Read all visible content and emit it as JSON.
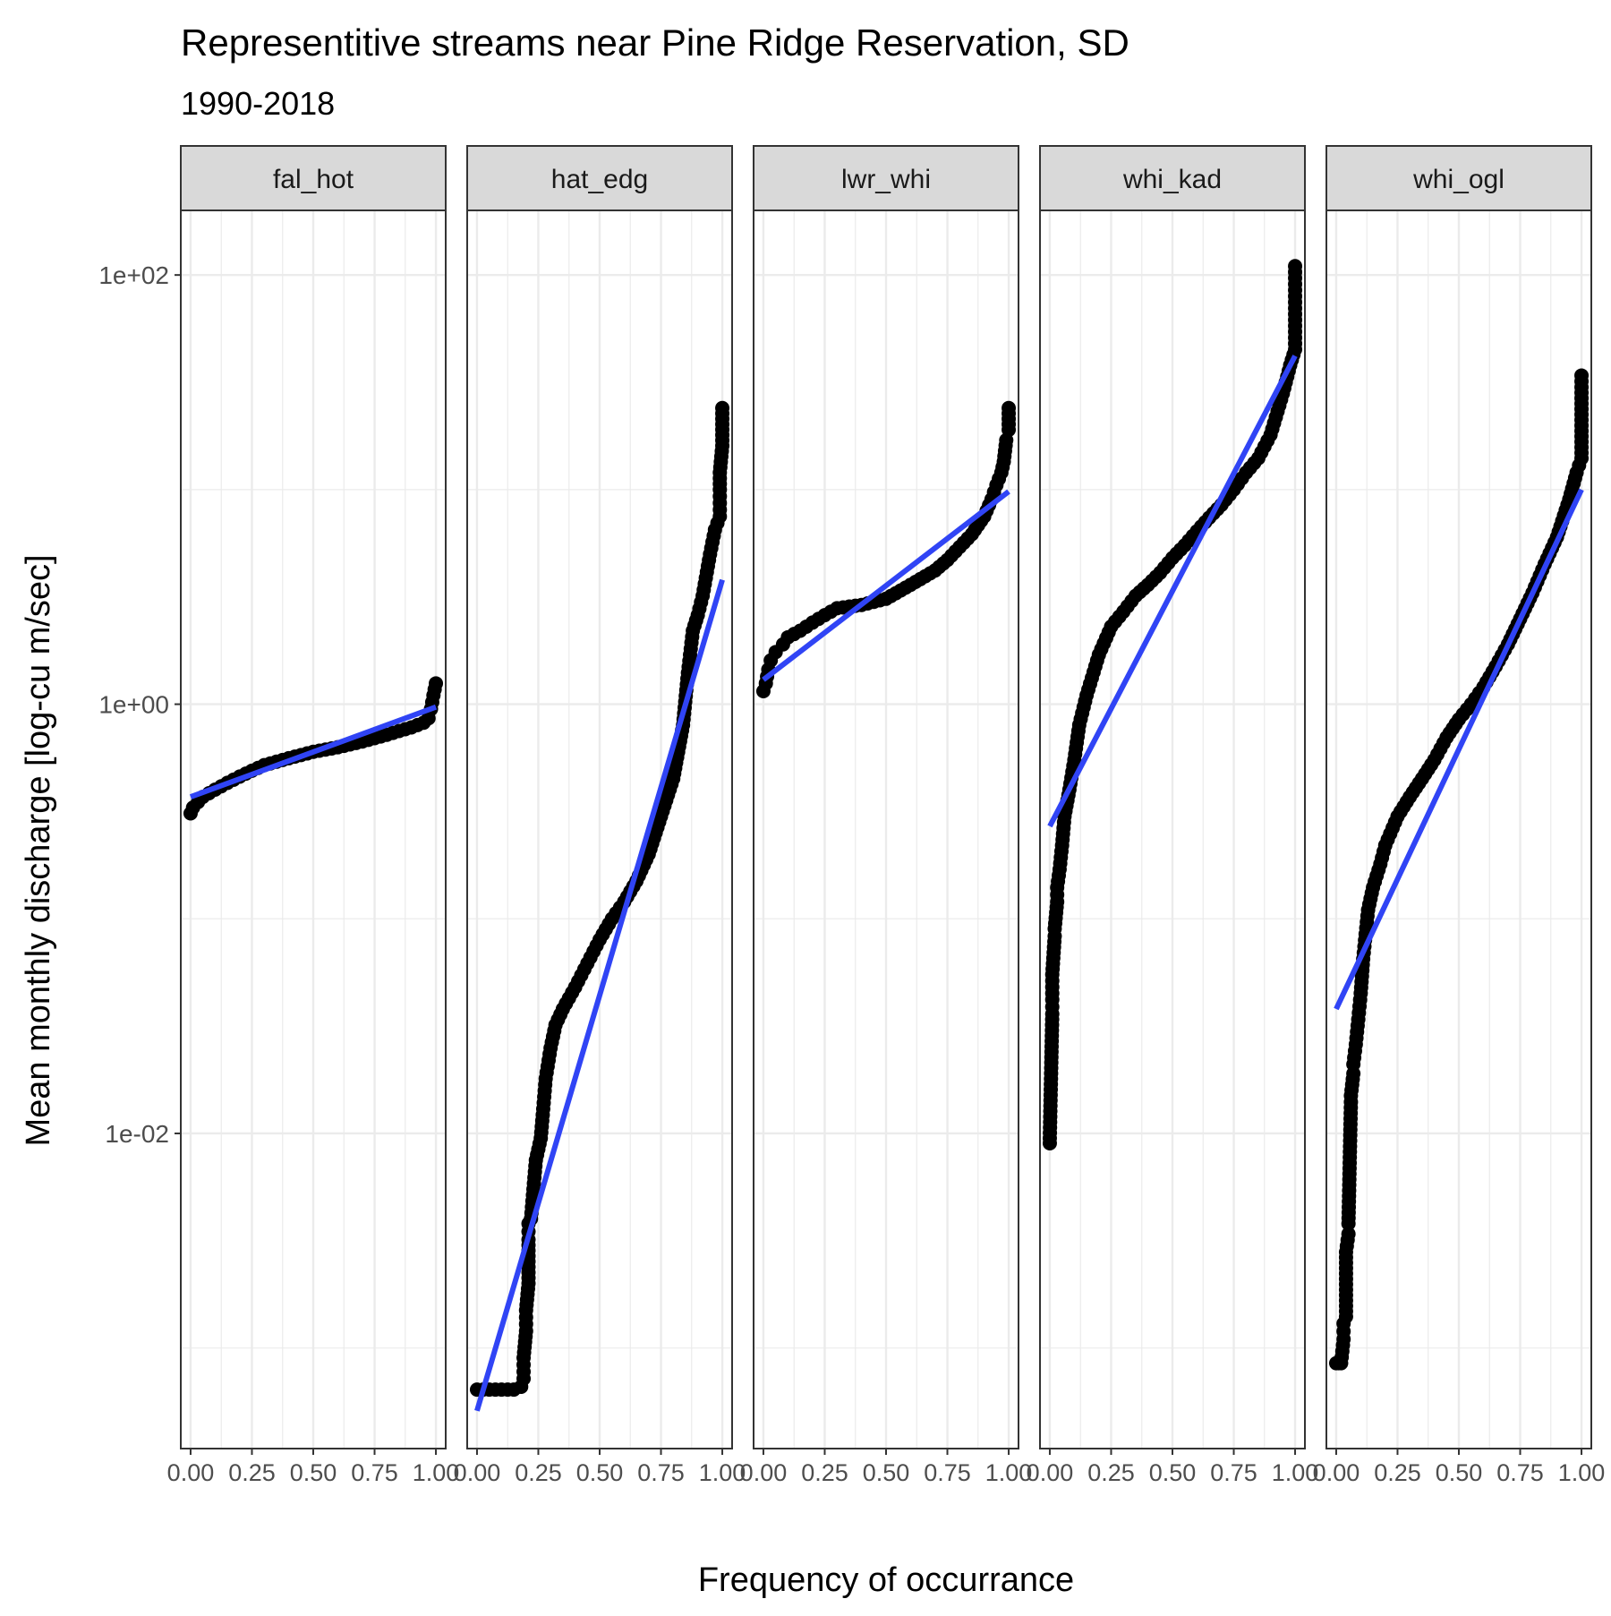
{
  "chart_data": {
    "type": "scatter",
    "title": "Representitive streams near Pine Ridge Reservation, SD",
    "subtitle": "1990-2018",
    "xlabel": "Frequency of occurrance",
    "ylabel": "Mean monthly discharge [log-cu m/sec]",
    "y_scale": "log10",
    "ylim": [
      0.00034,
      200
    ],
    "xlim": [
      -0.04,
      1.04
    ],
    "x_ticks": [
      0.0,
      0.25,
      0.5,
      0.75,
      1.0
    ],
    "x_tick_labels": [
      "0.00",
      "0.25",
      "0.50",
      "0.75",
      "1.00"
    ],
    "y_ticks": [
      0.01,
      1,
      100
    ],
    "y_tick_labels": [
      "1e-02",
      "1e+00",
      "1e+02"
    ],
    "grid": true,
    "point_color": "#000000",
    "fit_line_color": "#3044F5",
    "strip_fill": "#D9D9D9",
    "panels": [
      {
        "label": "fal_hot",
        "points": [
          [
            0.0,
            0.31
          ],
          [
            0.01,
            0.33
          ],
          [
            0.03,
            0.35
          ],
          [
            0.05,
            0.37
          ],
          [
            0.1,
            0.4
          ],
          [
            0.15,
            0.43
          ],
          [
            0.2,
            0.46
          ],
          [
            0.25,
            0.49
          ],
          [
            0.3,
            0.52
          ],
          [
            0.4,
            0.56
          ],
          [
            0.5,
            0.6
          ],
          [
            0.6,
            0.63
          ],
          [
            0.7,
            0.67
          ],
          [
            0.8,
            0.72
          ],
          [
            0.85,
            0.75
          ],
          [
            0.9,
            0.78
          ],
          [
            0.95,
            0.82
          ],
          [
            0.97,
            0.86
          ],
          [
            0.98,
            0.95
          ],
          [
            0.99,
            1.1
          ],
          [
            1.0,
            1.25
          ]
        ],
        "fit": [
          [
            0.0,
            0.37
          ],
          [
            1.0,
            0.97
          ]
        ]
      },
      {
        "label": "hat_edg",
        "points": [
          [
            0.0,
            0.00064
          ],
          [
            0.05,
            0.00064
          ],
          [
            0.1,
            0.00064
          ],
          [
            0.15,
            0.00064
          ],
          [
            0.18,
            0.00066
          ],
          [
            0.19,
            0.00072
          ],
          [
            0.19,
            0.0009
          ],
          [
            0.2,
            0.0012
          ],
          [
            0.2,
            0.0015
          ],
          [
            0.21,
            0.002
          ],
          [
            0.21,
            0.0032
          ],
          [
            0.21,
            0.0038
          ],
          [
            0.22,
            0.004
          ],
          [
            0.23,
            0.0055
          ],
          [
            0.24,
            0.0075
          ],
          [
            0.26,
            0.0095
          ],
          [
            0.27,
            0.013
          ],
          [
            0.28,
            0.018
          ],
          [
            0.3,
            0.025
          ],
          [
            0.32,
            0.032
          ],
          [
            0.35,
            0.038
          ],
          [
            0.4,
            0.048
          ],
          [
            0.45,
            0.062
          ],
          [
            0.5,
            0.08
          ],
          [
            0.55,
            0.1
          ],
          [
            0.6,
            0.12
          ],
          [
            0.65,
            0.15
          ],
          [
            0.7,
            0.2
          ],
          [
            0.75,
            0.3
          ],
          [
            0.8,
            0.45
          ],
          [
            0.84,
            0.8
          ],
          [
            0.86,
            1.4
          ],
          [
            0.88,
            2.2
          ],
          [
            0.9,
            2.6
          ],
          [
            0.92,
            3.2
          ],
          [
            0.95,
            5.0
          ],
          [
            0.97,
            6.5
          ],
          [
            0.99,
            7.5
          ],
          [
            0.99,
            10
          ],
          [
            0.99,
            12
          ],
          [
            1.0,
            16
          ],
          [
            1.0,
            24
          ]
        ],
        "fit": [
          [
            0.0,
            0.00051
          ],
          [
            1.0,
            3.8
          ]
        ]
      },
      {
        "label": "lwr_whi",
        "points": [
          [
            0.0,
            1.15
          ],
          [
            0.01,
            1.25
          ],
          [
            0.02,
            1.45
          ],
          [
            0.03,
            1.6
          ],
          [
            0.05,
            1.75
          ],
          [
            0.08,
            1.9
          ],
          [
            0.1,
            2.05
          ],
          [
            0.15,
            2.2
          ],
          [
            0.2,
            2.4
          ],
          [
            0.25,
            2.6
          ],
          [
            0.3,
            2.8
          ],
          [
            0.4,
            2.9
          ],
          [
            0.5,
            3.1
          ],
          [
            0.6,
            3.6
          ],
          [
            0.7,
            4.2
          ],
          [
            0.75,
            4.7
          ],
          [
            0.8,
            5.4
          ],
          [
            0.85,
            6.2
          ],
          [
            0.9,
            7.5
          ],
          [
            0.93,
            9.0
          ],
          [
            0.95,
            10.5
          ],
          [
            0.97,
            12.0
          ],
          [
            0.98,
            13.5
          ],
          [
            0.99,
            17.0
          ],
          [
            1.0,
            19.0
          ],
          [
            1.0,
            24.0
          ]
        ],
        "fit": [
          [
            0.0,
            1.3
          ],
          [
            1.0,
            9.8
          ]
        ]
      },
      {
        "label": "whi_kad",
        "points": [
          [
            0.0,
            0.009
          ],
          [
            0.0,
            0.0095
          ],
          [
            0.01,
            0.036
          ],
          [
            0.01,
            0.042
          ],
          [
            0.01,
            0.055
          ],
          [
            0.02,
            0.083
          ],
          [
            0.02,
            0.09
          ],
          [
            0.03,
            0.12
          ],
          [
            0.03,
            0.14
          ],
          [
            0.04,
            0.17
          ],
          [
            0.05,
            0.22
          ],
          [
            0.06,
            0.3
          ],
          [
            0.08,
            0.4
          ],
          [
            0.1,
            0.55
          ],
          [
            0.12,
            0.8
          ],
          [
            0.15,
            1.1
          ],
          [
            0.2,
            1.7
          ],
          [
            0.25,
            2.3
          ],
          [
            0.3,
            2.7
          ],
          [
            0.35,
            3.2
          ],
          [
            0.4,
            3.6
          ],
          [
            0.45,
            4.1
          ],
          [
            0.5,
            4.8
          ],
          [
            0.55,
            5.5
          ],
          [
            0.6,
            6.4
          ],
          [
            0.65,
            7.4
          ],
          [
            0.7,
            8.5
          ],
          [
            0.75,
            10.0
          ],
          [
            0.8,
            12.0
          ],
          [
            0.85,
            14.0
          ],
          [
            0.9,
            18.0
          ],
          [
            0.95,
            28.0
          ],
          [
            0.98,
            38.0
          ],
          [
            1.0,
            45.0
          ],
          [
            1.0,
            70.0
          ],
          [
            1.0,
            110.0
          ]
        ],
        "fit": [
          [
            0.0,
            0.27
          ],
          [
            1.0,
            42.0
          ]
        ]
      },
      {
        "label": "whi_ogl",
        "points": [
          [
            0.0,
            0.00085
          ],
          [
            0.01,
            0.00085
          ],
          [
            0.02,
            0.00085
          ],
          [
            0.03,
            0.0011
          ],
          [
            0.03,
            0.0013
          ],
          [
            0.04,
            0.0014
          ],
          [
            0.04,
            0.0028
          ],
          [
            0.05,
            0.0034
          ],
          [
            0.05,
            0.0038
          ],
          [
            0.06,
            0.014
          ],
          [
            0.06,
            0.015
          ],
          [
            0.07,
            0.019
          ],
          [
            0.07,
            0.021
          ],
          [
            0.08,
            0.026
          ],
          [
            0.09,
            0.034
          ],
          [
            0.1,
            0.045
          ],
          [
            0.11,
            0.065
          ],
          [
            0.12,
            0.085
          ],
          [
            0.13,
            0.11
          ],
          [
            0.15,
            0.14
          ],
          [
            0.18,
            0.18
          ],
          [
            0.2,
            0.22
          ],
          [
            0.25,
            0.3
          ],
          [
            0.3,
            0.37
          ],
          [
            0.35,
            0.45
          ],
          [
            0.4,
            0.55
          ],
          [
            0.45,
            0.7
          ],
          [
            0.5,
            0.85
          ],
          [
            0.55,
            1.0
          ],
          [
            0.6,
            1.2
          ],
          [
            0.65,
            1.5
          ],
          [
            0.7,
            1.9
          ],
          [
            0.75,
            2.5
          ],
          [
            0.8,
            3.3
          ],
          [
            0.85,
            4.5
          ],
          [
            0.9,
            6.0
          ],
          [
            0.95,
            9.0
          ],
          [
            0.98,
            12.0
          ],
          [
            1.0,
            14.0
          ],
          [
            1.0,
            30.0
          ],
          [
            1.0,
            34.0
          ]
        ],
        "fit": [
          [
            0.0,
            0.038
          ],
          [
            1.0,
            10.0
          ]
        ]
      }
    ]
  }
}
